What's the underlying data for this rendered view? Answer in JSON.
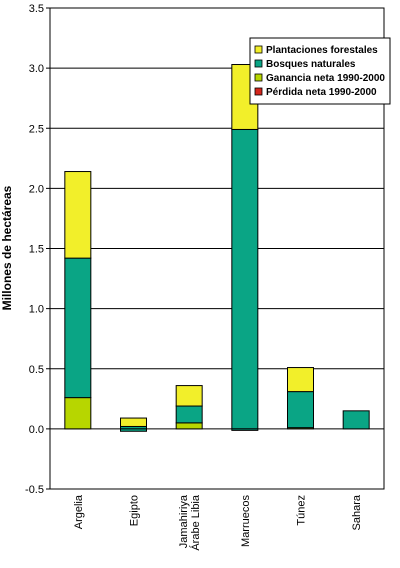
{
  "chart_data": {
    "type": "bar",
    "stacked": true,
    "title": "",
    "xlabel": "",
    "ylabel": "Millones de hectáreas",
    "ylim": [
      -0.5,
      3.5
    ],
    "yticks": [
      "-0.5",
      "0.0",
      "0.5",
      "1.0",
      "1.5",
      "2.0",
      "2.5",
      "3.0",
      "3.5"
    ],
    "grid": "horizontal",
    "legend_position": "top-right",
    "categories": [
      [
        "Argelia"
      ],
      [
        "Egipto"
      ],
      [
        "Jamahiriya",
        "Árabe Libia"
      ],
      [
        "Marruecos"
      ],
      [
        "Túnez"
      ],
      [
        "Sahara"
      ]
    ],
    "series": [
      {
        "name": "Plantaciones forestales",
        "color": "#f2ef2a",
        "values": [
          0.72,
          0.07,
          0.17,
          0.54,
          0.2,
          0.0
        ]
      },
      {
        "name": "Bosques naturales",
        "color": "#0aa585",
        "values": [
          1.16,
          0.02,
          0.14,
          2.49,
          0.3,
          0.15
        ]
      },
      {
        "name": "Ganancia neta 1990-2000",
        "color": "#b7d600",
        "values": [
          0.26,
          0.0,
          0.05,
          0.0,
          0.01,
          0.0
        ]
      },
      {
        "name": "Pérdida neta 1990-2000",
        "color": "#d4261c",
        "values": [
          0.0,
          -0.02,
          0.0,
          -0.01,
          0.0,
          0.0
        ]
      }
    ]
  }
}
